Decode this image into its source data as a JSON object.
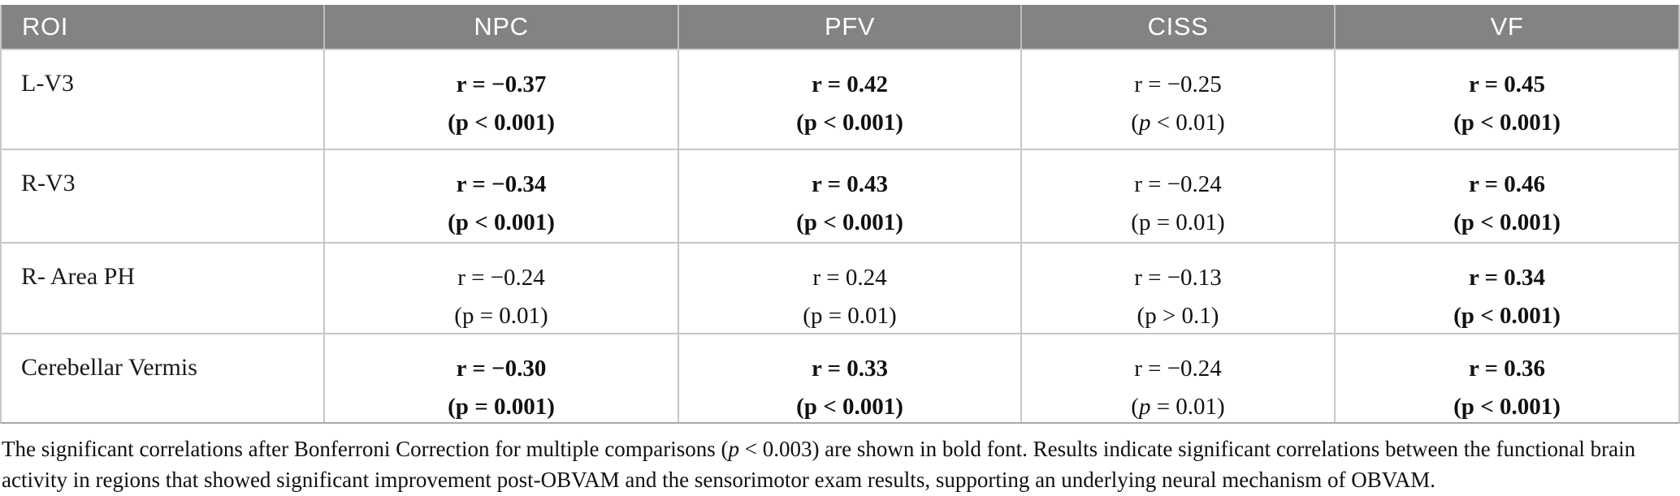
{
  "table": {
    "columns": [
      {
        "label": "ROI"
      },
      {
        "label": "NPC"
      },
      {
        "label": "PFV"
      },
      {
        "label": "CISS"
      },
      {
        "label": "VF"
      }
    ],
    "rows": [
      {
        "roi": "L-V3",
        "cells": [
          {
            "r": "r = −0.37",
            "p_open": "(",
            "p_sym": "p",
            "p_rest": " < 0.001)",
            "bold": true,
            "p_italic": false
          },
          {
            "r": "r = 0.42",
            "p_open": "(",
            "p_sym": "p",
            "p_rest": " < 0.001)",
            "bold": true,
            "p_italic": false
          },
          {
            "r": "r = −0.25",
            "p_open": "(",
            "p_sym": "p",
            "p_rest": " < 0.01)",
            "bold": false,
            "p_italic": true
          },
          {
            "r": "r = 0.45",
            "p_open": "(",
            "p_sym": "p",
            "p_rest": " < 0.001)",
            "bold": true,
            "p_italic": false
          }
        ]
      },
      {
        "roi": "R-V3",
        "cells": [
          {
            "r": "r = −0.34",
            "p_open": "(",
            "p_sym": "p",
            "p_rest": " < 0.001)",
            "bold": true,
            "p_italic": false
          },
          {
            "r": "r = 0.43",
            "p_open": "(",
            "p_sym": "p",
            "p_rest": " < 0.001)",
            "bold": true,
            "p_italic": false
          },
          {
            "r": "r = −0.24",
            "p_open": "(",
            "p_sym": "p",
            "p_rest": " = 0.01)",
            "bold": false,
            "p_italic": false
          },
          {
            "r": "r = 0.46",
            "p_open": "(",
            "p_sym": "p",
            "p_rest": " < 0.001)",
            "bold": true,
            "p_italic": false
          }
        ]
      },
      {
        "roi": "R- Area PH",
        "cells": [
          {
            "r": "r = −0.24",
            "p_open": "(",
            "p_sym": "p",
            "p_rest": " = 0.01)",
            "bold": false,
            "p_italic": false
          },
          {
            "r": "r = 0.24",
            "p_open": "(",
            "p_sym": "p",
            "p_rest": " = 0.01)",
            "bold": false,
            "p_italic": false
          },
          {
            "r": "r = −0.13",
            "p_open": "(",
            "p_sym": "p",
            "p_rest": " > 0.1)",
            "bold": false,
            "p_italic": false
          },
          {
            "r": "r = 0.34",
            "p_open": "(",
            "p_sym": "p",
            "p_rest": " < 0.001)",
            "bold": true,
            "p_italic": false
          }
        ]
      },
      {
        "roi": "Cerebellar Vermis",
        "cells": [
          {
            "r": "r = −0.30",
            "p_open": "(",
            "p_sym": "p",
            "p_rest": " = 0.001)",
            "bold": true,
            "p_italic": false
          },
          {
            "r": "r = 0.33",
            "p_open": "(",
            "p_sym": "p",
            "p_rest": " < 0.001)",
            "bold": true,
            "p_italic": false
          },
          {
            "r": "r = −0.24",
            "p_open": "(",
            "p_sym": "p",
            "p_rest": " = 0.01)",
            "bold": false,
            "p_italic": true
          },
          {
            "r": "r = 0.36",
            "p_open": "(",
            "p_sym": "p",
            "p_rest": " < 0.001)",
            "bold": true,
            "p_italic": false
          }
        ]
      }
    ]
  },
  "footnote": {
    "line1_pre": "The significant correlations after Bonferroni Correction for multiple comparisons (",
    "line1_p": "p",
    "line1_rest": " < 0.003) are shown in bold font. Results indicate significant correlations between the functional brain",
    "line2": "activity in regions that showed significant improvement post-OBVAM and the sensorimotor exam results, supporting an underlying neural mechanism of OBVAM."
  },
  "colors": {
    "header_bg": "#838383",
    "header_text": "#ffffff",
    "grid_line": "#c6c6c6",
    "table_bottom_border": "#a9a9a9",
    "body_text": "#111111"
  }
}
